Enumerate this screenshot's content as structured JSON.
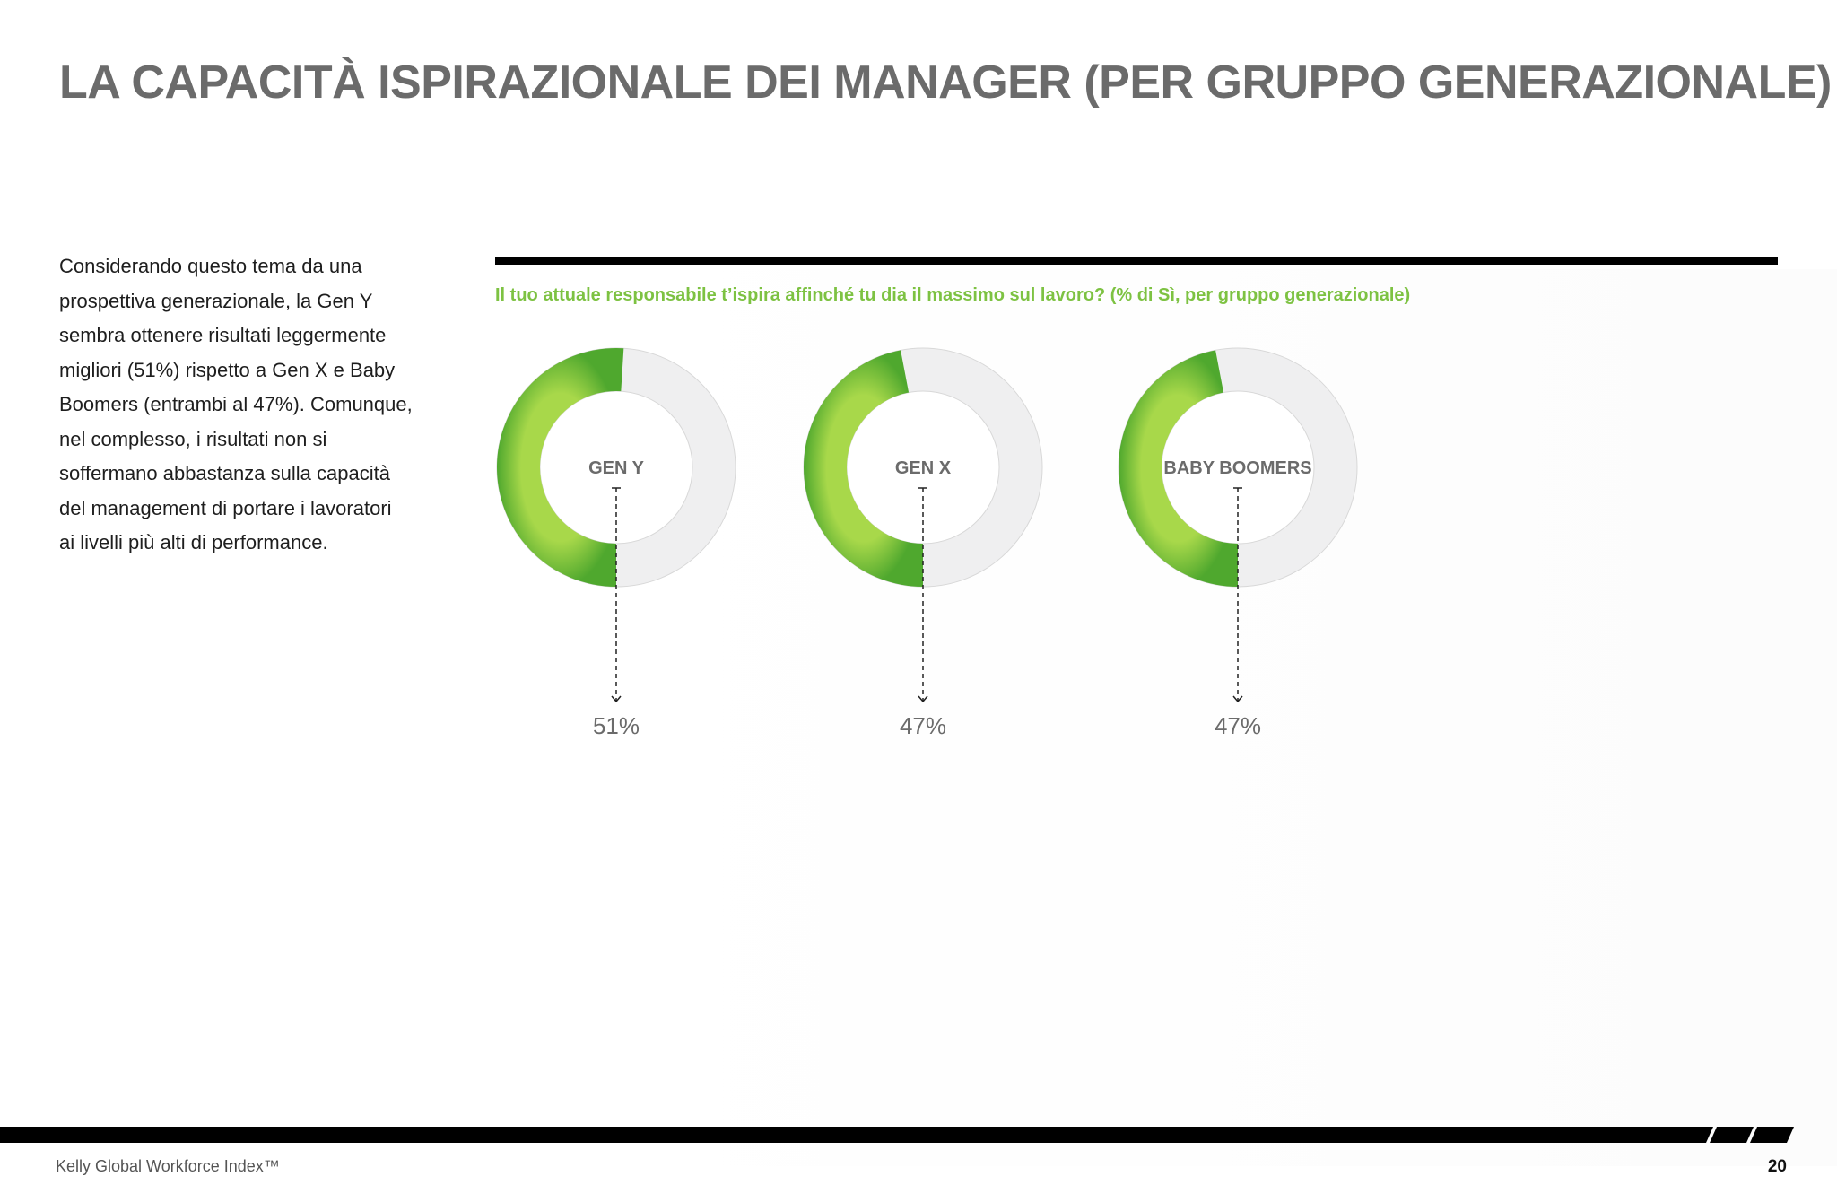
{
  "page": {
    "title": "LA CAPACITÀ ISPIRAZIONALE DEI MANAGER (PER GRUPPO GENERAZIONALE)",
    "intro_lines": [
      "Considerando questo tema da una",
      "prospettiva generazionale, la Gen Y",
      "sembra  ottenere risultati leggermente",
      "migliori (51%) rispetto a Gen X e Baby",
      "Boomers (entrambi al 47%). Comunque,",
      "nel complesso, i risultati non si",
      "soffermano abbastanza sulla capacità",
      "del management di portare i lavoratori",
      "ai livelli più alti di performance."
    ]
  },
  "footer": {
    "brand": "Kelly Global Workforce Index™",
    "page_number": "20"
  },
  "colors": {
    "accent_green": "#7dc242",
    "green_dark": "#4fa82e",
    "track_gray": "#efeff0",
    "title_gray": "#6b6b6b"
  },
  "chart_data": {
    "type": "pie",
    "subtitle": "Il tuo attuale responsabile t’ispira affinché tu dia il massimo sul lavoro? (% di Sì, per gruppo generazionale)",
    "unit": "%",
    "max": 100,
    "categories": [
      "GEN Y",
      "GEN X",
      "BABY BOOMERS"
    ],
    "values": [
      51,
      47,
      47
    ],
    "value_labels": [
      "51%",
      "47%",
      "47%"
    ]
  }
}
